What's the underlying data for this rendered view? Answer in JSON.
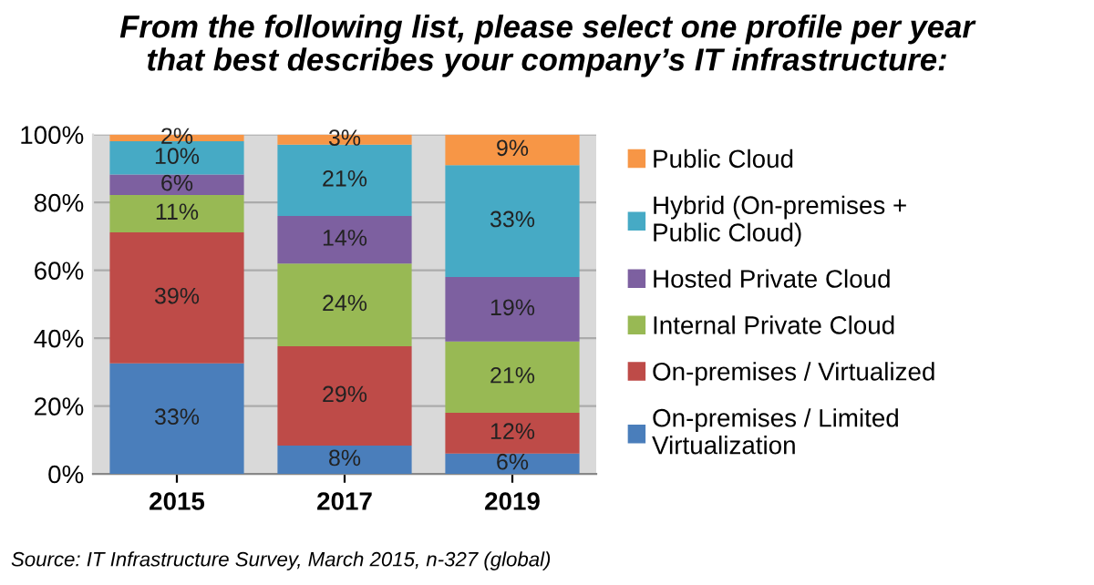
{
  "chart_data": {
    "type": "bar",
    "stacked": true,
    "title": "From the following list, please select one profile per year\nthat best describes your company’s IT infrastructure:",
    "categories": [
      "2015",
      "2017",
      "2019"
    ],
    "series": [
      {
        "name": "On-premises / Limited\nVirtualization",
        "color": "#4a7ebb",
        "values": [
          32.6,
          8.3,
          6
        ],
        "value_labels": [
          "33%",
          "8%",
          "6%"
        ]
      },
      {
        "name": "On-premises / Virtualized",
        "color": "#be4b48",
        "values": [
          38.6,
          29.3,
          12
        ],
        "value_labels": [
          "39%",
          "29%",
          "12%"
        ]
      },
      {
        "name": "Internal Private Cloud",
        "color": "#98b954",
        "values": [
          11,
          24.4,
          21
        ],
        "value_labels": [
          "11%",
          "24%",
          "21%"
        ]
      },
      {
        "name": "Hosted Private Cloud",
        "color": "#7d60a0",
        "values": [
          6,
          14,
          19
        ],
        "value_labels": [
          "6%",
          "14%",
          "19%"
        ]
      },
      {
        "name": "Hybrid (On-premises +\nPublic Cloud)",
        "color": "#46aac5",
        "values": [
          9.8,
          21,
          33
        ],
        "value_labels": [
          "10%",
          "21%",
          "33%"
        ]
      },
      {
        "name": "Public Cloud",
        "color": "#f79646",
        "values": [
          2,
          3,
          9
        ],
        "value_labels": [
          "2%",
          "3%",
          "9%"
        ]
      }
    ],
    "ylim": [
      0,
      100
    ],
    "yticks": [
      {
        "value": 0,
        "label": "0%"
      },
      {
        "value": 20,
        "label": "20%"
      },
      {
        "value": 40,
        "label": "40%"
      },
      {
        "value": 60,
        "label": "60%"
      },
      {
        "value": 80,
        "label": "80%"
      },
      {
        "value": 100,
        "label": "100%"
      }
    ],
    "grid": "y",
    "legend": "right",
    "annotations": [
      "Source: IT Infrastructure Survey, March 2015, n-327 (global)"
    ]
  }
}
